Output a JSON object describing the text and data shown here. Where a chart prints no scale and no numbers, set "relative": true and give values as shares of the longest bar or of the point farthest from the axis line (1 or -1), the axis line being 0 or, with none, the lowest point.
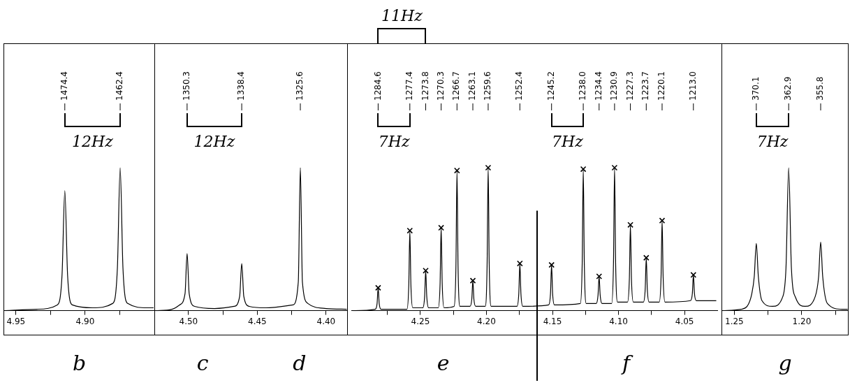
{
  "chart_data": [
    {
      "type": "line",
      "relative": true,
      "xlim": [
        4.959,
        4.8495
      ],
      "xticks": [
        4.95,
        {
          "value": 4.925,
          "label": null
        },
        {
          "value": 4.9,
          "label": "4.90"
        },
        {
          "value": 4.875,
          "label": null
        }
      ],
      "grid": false,
      "legend": false,
      "marker": "none",
      "series": [
        {
          "color": "#000000",
          "x": [
            4.958,
            4.935,
            4.9202,
            4.9167,
            4.9147,
            4.9127,
            4.9092,
            4.8947,
            4.8802,
            4.8767,
            4.8747,
            4.8727,
            4.8692,
            4.855,
            4.8505
          ],
          "values": [
            0.0,
            0.01,
            0.04,
            0.25,
            0.84,
            0.25,
            0.04,
            0.02,
            0.05,
            0.3,
            1.0,
            0.3,
            0.05,
            0.02,
            0.02
          ]
        }
      ],
      "annotations": [
        "1474.4",
        "1462.4",
        "12Hz",
        "b"
      ]
    },
    {
      "type": "line",
      "relative": true,
      "xlim": [
        4.5248,
        4.3842
      ],
      "xticks": [
        {
          "value": 4.5,
          "label": "4.50"
        },
        {
          "value": 4.475,
          "label": null
        },
        4.45,
        {
          "value": 4.425,
          "label": null
        },
        {
          "value": 4.4,
          "label": "4.40"
        }
      ],
      "grid": false,
      "legend": false,
      "marker": "none",
      "series": [
        {
          "color": "#000000",
          "x": [
            4.524,
            4.512,
            4.5065,
            4.5025,
            4.501,
            4.4995,
            4.4955,
            4.481,
            4.4668,
            4.4628,
            4.4613,
            4.4598,
            4.4558,
            4.4437,
            4.4242,
            4.4202,
            4.4187,
            4.4172,
            4.4132,
            4.4,
            4.385
          ],
          "values": [
            0.0,
            0.01,
            0.04,
            0.12,
            0.4,
            0.12,
            0.03,
            0.015,
            0.03,
            0.1,
            0.33,
            0.1,
            0.03,
            0.02,
            0.04,
            0.2,
            1.0,
            0.2,
            0.05,
            0.015,
            0.01
          ]
        }
      ],
      "annotations": [
        "1350.3",
        "1338.4",
        "1325.6",
        "12Hz",
        "c",
        "d"
      ]
    },
    {
      "type": "line",
      "relative": true,
      "xlim": [
        4.302,
        4.025
      ],
      "xticks": [
        {
          "value": 4.275,
          "label": null
        },
        4.25,
        {
          "value": 4.225,
          "label": null
        },
        {
          "value": 4.2,
          "label": "4.20"
        },
        {
          "value": 4.175,
          "label": null
        },
        4.15,
        {
          "value": 4.125,
          "label": null
        },
        {
          "value": 4.1,
          "label": "4.10"
        },
        {
          "value": 4.075,
          "label": null
        },
        {
          "value": 4.05,
          "label": "4.05"
        }
      ],
      "grid": false,
      "legend": false,
      "marker": "none",
      "series": [
        {
          "color": "#000000",
          "x": [
            4.301,
            4.2842,
            4.2828,
            4.282,
            4.2812,
            4.2798,
            4.2602,
            4.2588,
            4.258,
            4.2572,
            4.2558,
            4.2482,
            4.2468,
            4.246,
            4.2452,
            4.2438,
            4.2365,
            4.2351,
            4.2343,
            4.2335,
            4.2321,
            4.2245,
            4.2231,
            4.2223,
            4.2215,
            4.2201,
            4.2125,
            4.2111,
            4.2103,
            4.2095,
            4.2081,
            4.2009,
            4.1995,
            4.1987,
            4.1979,
            4.1965,
            4.1769,
            4.1755,
            4.1747,
            4.1739,
            4.1725,
            4.1529,
            4.1515,
            4.1507,
            4.1499,
            4.1485,
            4.1289,
            4.1275,
            4.1267,
            4.1259,
            4.1245,
            4.1169,
            4.1155,
            4.1147,
            4.1139,
            4.1125,
            4.1052,
            4.1038,
            4.103,
            4.1022,
            4.1008,
            4.0932,
            4.0918,
            4.091,
            4.0902,
            4.0888,
            4.0812,
            4.0798,
            4.079,
            4.0782,
            4.0768,
            4.0692,
            4.0678,
            4.067,
            4.0662,
            4.0648,
            4.0455,
            4.0441,
            4.0433,
            4.0425,
            4.0411,
            4.026
          ],
          "values": [
            0.0,
            0.01,
            0.05,
            0.16,
            0.05,
            0.01,
            0.01,
            0.18,
            0.56,
            0.18,
            0.02,
            0.02,
            0.1,
            0.28,
            0.1,
            0.02,
            0.02,
            0.19,
            0.58,
            0.19,
            0.02,
            0.03,
            0.31,
            0.98,
            0.31,
            0.03,
            0.03,
            0.08,
            0.21,
            0.08,
            0.03,
            0.03,
            0.32,
            1.0,
            0.32,
            0.03,
            0.03,
            0.12,
            0.33,
            0.12,
            0.03,
            0.04,
            0.12,
            0.32,
            0.12,
            0.04,
            0.05,
            0.33,
            0.99,
            0.33,
            0.05,
            0.05,
            0.11,
            0.24,
            0.11,
            0.05,
            0.05,
            0.34,
            1.0,
            0.34,
            0.06,
            0.06,
            0.22,
            0.6,
            0.22,
            0.06,
            0.06,
            0.15,
            0.37,
            0.15,
            0.06,
            0.06,
            0.23,
            0.63,
            0.23,
            0.06,
            0.07,
            0.12,
            0.25,
            0.12,
            0.07,
            0.07
          ]
        },
        {
          "type": "scatter",
          "marker": "cross",
          "color": "#000000",
          "x": [
            4.282,
            4.258,
            4.246,
            4.2343,
            4.2223,
            4.2103,
            4.1987,
            4.1747,
            4.1507,
            4.1267,
            4.1147,
            4.103,
            4.091,
            4.079,
            4.067,
            4.0433
          ],
          "values": [
            0.16,
            0.56,
            0.28,
            0.58,
            0.98,
            0.21,
            1.0,
            0.33,
            0.32,
            0.99,
            0.24,
            1.0,
            0.6,
            0.37,
            0.63,
            0.25
          ]
        }
      ],
      "ref_lines": [
        {
          "axis": "x",
          "value": 4.1618,
          "color": "#000000"
        }
      ],
      "annotations": [
        "1284.6",
        "1277.4",
        "1273.8",
        "1270.3",
        "1266.7",
        "1263.1",
        "1259.6",
        "1252.4",
        "1245.2",
        "1238.0",
        "1234.4",
        "1230.9",
        "1227.3",
        "1223.7",
        "1220.1",
        "1213.0",
        "7Hz",
        "11Hz",
        "7Hz",
        "e",
        "f"
      ]
    },
    {
      "type": "line",
      "relative": true,
      "xlim": [
        1.2595,
        1.1653
      ],
      "xticks": [
        1.25,
        {
          "value": 1.225,
          "label": null
        },
        {
          "value": 1.2,
          "label": "1.20"
        },
        {
          "value": 1.175,
          "label": null
        }
      ],
      "grid": false,
      "legend": false,
      "marker": "none",
      "series": [
        {
          "color": "#000000",
          "x": [
            1.259,
            1.245,
            1.2405,
            1.237,
            1.2352,
            1.2337,
            1.2322,
            1.2295,
            1.2217,
            1.214,
            1.2117,
            1.2097,
            1.2077,
            1.2045,
            1.1975,
            1.19,
            1.1875,
            1.186,
            1.1845,
            1.181,
            1.17,
            1.166
          ],
          "values": [
            0.0,
            0.01,
            0.03,
            0.12,
            0.24,
            0.47,
            0.24,
            0.07,
            0.03,
            0.1,
            0.3,
            1.0,
            0.3,
            0.09,
            0.03,
            0.1,
            0.24,
            0.48,
            0.24,
            0.05,
            0.01,
            0.01
          ]
        }
      ],
      "annotations": [
        "370.1",
        "362.9",
        "355.8",
        "7Hz",
        "g"
      ]
    }
  ]
}
